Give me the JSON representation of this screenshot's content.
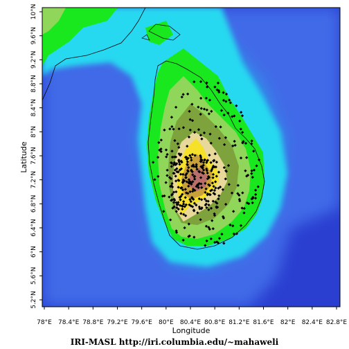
{
  "map": {
    "xlabel": "Longitude",
    "ylabel": "Latitude",
    "lon_ticks": [
      "78°E",
      "78.4°E",
      "78.8°E",
      "79.2°E",
      "79.6°E",
      "80°E",
      "80.4°E",
      "80.8°E",
      "81.2°E",
      "81.6°E",
      "82°E",
      "82.4°E",
      "82.8°E"
    ],
    "lat_ticks": [
      "10°N",
      "9.6°N",
      "9.2°N",
      "8.8°N",
      "8.4°N",
      "8°N",
      "7.6°N",
      "7.2°N",
      "6.8°N",
      "6.4°N",
      "6°N",
      "5.6°N",
      "5.2°N"
    ],
    "colors": {
      "deep_ocean": "#2a3fd0",
      "ocean": "#3f6ae8",
      "shelf": "#27d8f0",
      "lowland": "#19e81e",
      "plain": "#8fd65a",
      "hill": "#7ea33c",
      "upland": "#e8d99a",
      "highland": "#f5e02a",
      "mountain": "#c9a13a",
      "peak": "#b86f6a",
      "station_marker": "#000000"
    }
  },
  "footer": {
    "credit": "IRI-MASL   http://iri.columbia.edu/~mahaweli"
  }
}
